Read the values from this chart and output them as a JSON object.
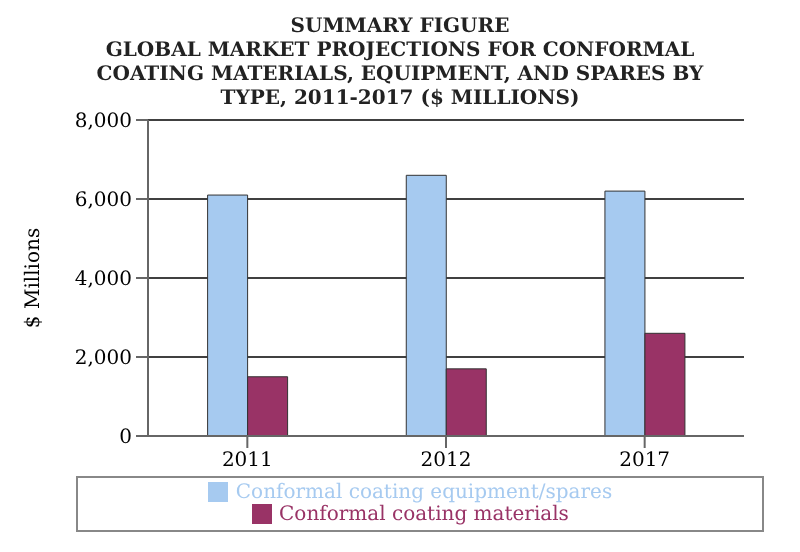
{
  "chart_data": {
    "type": "bar",
    "title": "SUMMARY FIGURE",
    "subtitle": "GLOBAL MARKET PROJECTIONS FOR CONFORMAL COATING MATERIALS, EQUIPMENT, AND SPARES  BY TYPE, 2011-2017 ($ MILLIONS)",
    "ylabel": "$ Millions",
    "categories": [
      "2011",
      "2012",
      "2017"
    ],
    "series": [
      {
        "name": "Conformal coating equipment/spares",
        "color": "#a6caf0",
        "values": [
          6100,
          6600,
          6200
        ]
      },
      {
        "name": "Conformal coating materials",
        "color": "#993366",
        "values": [
          1500,
          1700,
          2600
        ]
      }
    ],
    "ylim": [
      0,
      8000
    ],
    "yticks": [
      {
        "value": 0,
        "label": "0"
      },
      {
        "value": 2000,
        "label": "2,000"
      },
      {
        "value": 4000,
        "label": "4,000"
      },
      {
        "value": 6000,
        "label": "6,000"
      },
      {
        "value": 8000,
        "label": "8,000"
      }
    ],
    "grid": "y",
    "legend": "bottom"
  }
}
